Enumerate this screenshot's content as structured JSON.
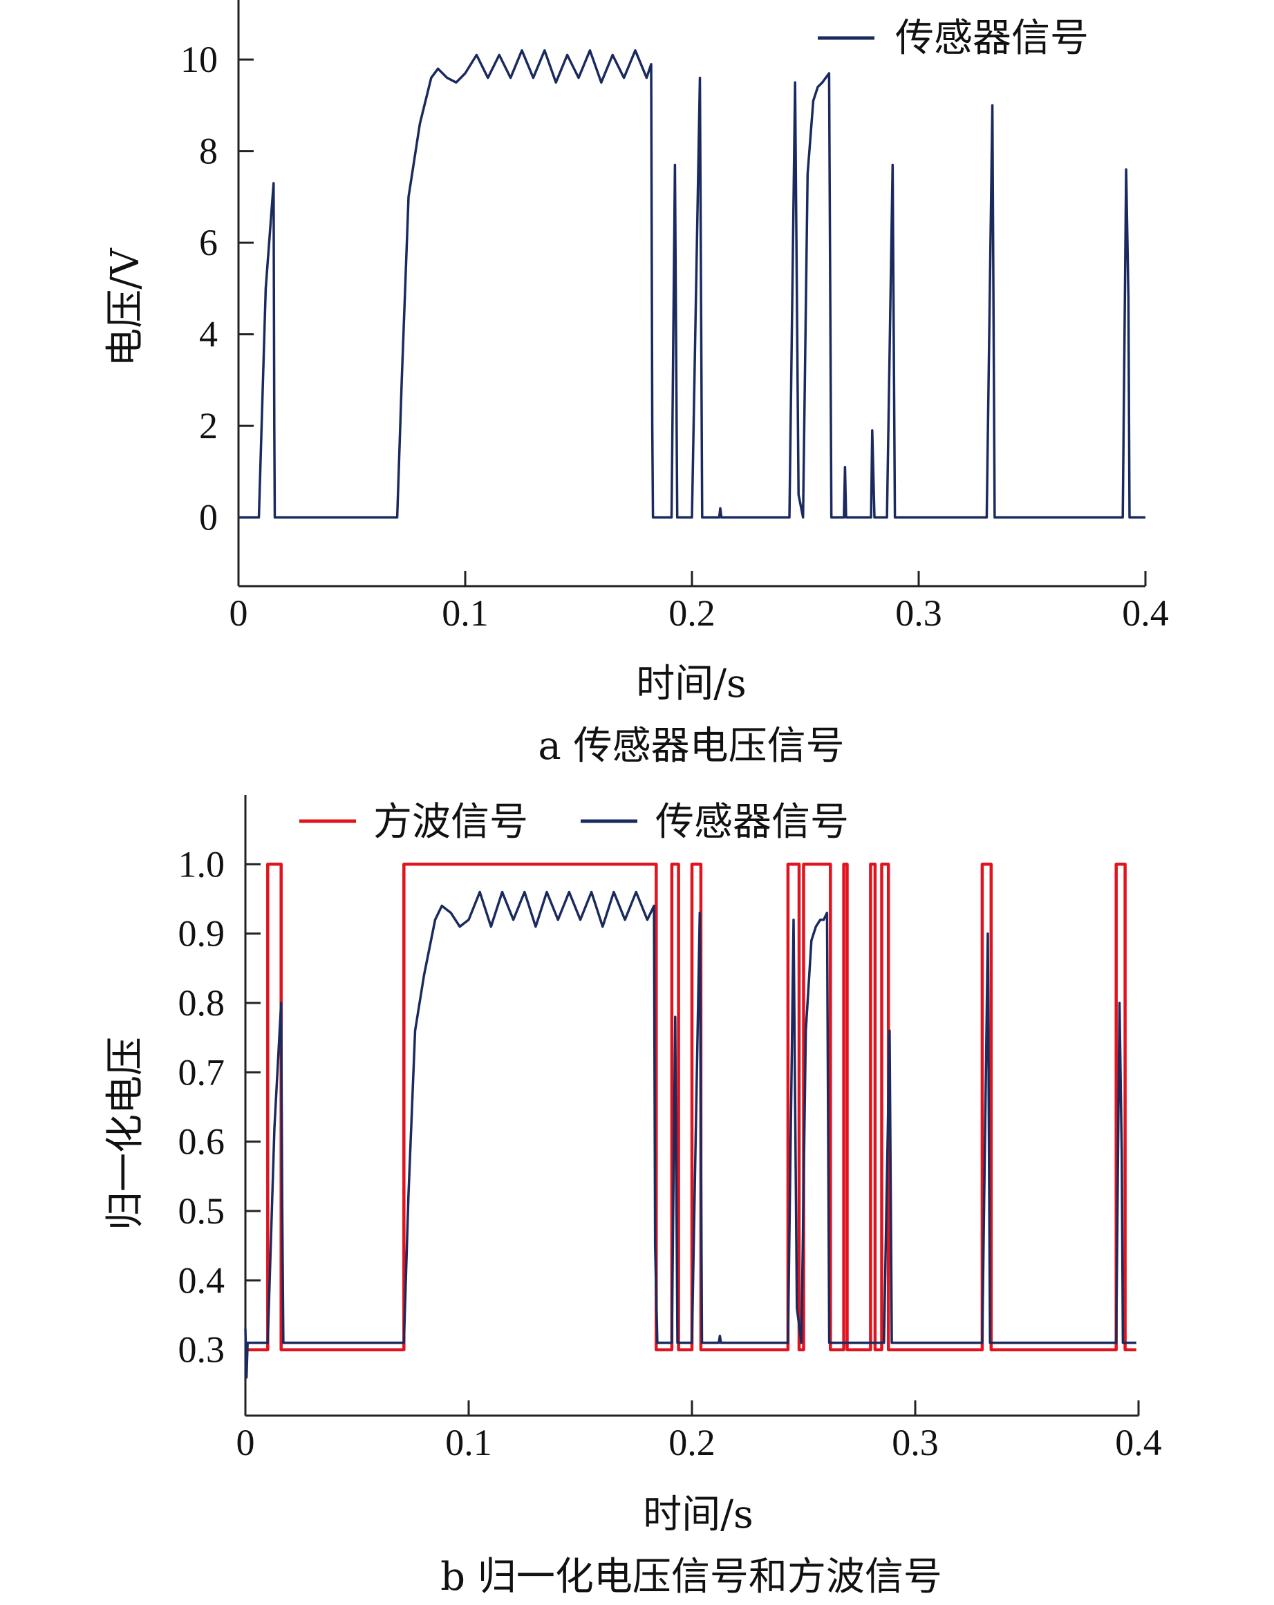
{
  "chart_data": [
    {
      "type": "line",
      "caption": "a  传感器电压信号",
      "xlabel": "时间/s",
      "ylabel": "电压/V",
      "xlim": [
        0,
        0.4
      ],
      "ylim": [
        -1.5,
        11.3
      ],
      "xticks": [
        0,
        0.1,
        0.2,
        0.3,
        0.4
      ],
      "xtick_labels": [
        "0",
        "0.1",
        "0.2",
        "0.3",
        "0.4"
      ],
      "yticks": [
        0,
        2,
        4,
        6,
        8,
        10
      ],
      "ytick_labels": [
        "0",
        "2",
        "4",
        "6",
        "8",
        "10"
      ],
      "grid": false,
      "legend_position": "top-right",
      "colors": {
        "sensor": "#1a2a5e"
      },
      "series": [
        {
          "name": "传感器信号",
          "x": [
            0.0,
            0.009,
            0.012,
            0.0155,
            0.0158,
            0.016,
            0.07,
            0.072,
            0.075,
            0.08,
            0.085,
            0.088,
            0.092,
            0.096,
            0.1,
            0.105,
            0.11,
            0.115,
            0.12,
            0.125,
            0.13,
            0.135,
            0.14,
            0.145,
            0.15,
            0.155,
            0.16,
            0.165,
            0.17,
            0.175,
            0.18,
            0.182,
            0.1825,
            0.1828,
            0.191,
            0.1925,
            0.1935,
            0.195,
            0.2,
            0.2035,
            0.2045,
            0.206,
            0.212,
            0.2125,
            0.213,
            0.243,
            0.2455,
            0.247,
            0.249,
            0.251,
            0.2535,
            0.2555,
            0.2575,
            0.259,
            0.2605,
            0.2615,
            0.263,
            0.267,
            0.2675,
            0.268,
            0.279,
            0.2795,
            0.2805,
            0.281,
            0.286,
            0.2885,
            0.2895,
            0.291,
            0.33,
            0.3325,
            0.3335,
            0.335,
            0.39,
            0.3915,
            0.3925,
            0.393,
            0.394,
            0.4
          ],
          "y": [
            0.0,
            0.0,
            5.0,
            7.3,
            2.0,
            0.0,
            0.0,
            3.0,
            7.0,
            8.6,
            9.6,
            9.8,
            9.6,
            9.5,
            9.7,
            10.1,
            9.6,
            10.1,
            9.6,
            10.2,
            9.6,
            10.2,
            9.5,
            10.1,
            9.6,
            10.2,
            9.5,
            10.1,
            9.6,
            10.2,
            9.6,
            9.9,
            2.0,
            0.0,
            0.0,
            7.7,
            0.0,
            0.0,
            0.0,
            9.6,
            0.0,
            0.0,
            0.0,
            0.2,
            0.0,
            0.0,
            9.5,
            0.5,
            0.0,
            7.5,
            9.1,
            9.4,
            9.5,
            9.6,
            9.7,
            0.0,
            0.0,
            0.0,
            1.1,
            0.0,
            0.0,
            1.9,
            0.0,
            0.0,
            0.0,
            7.7,
            0.0,
            0.0,
            0.0,
            9.0,
            0.0,
            0.0,
            0.0,
            7.6,
            4.8,
            0.0,
            0.0,
            0.0
          ]
        }
      ]
    },
    {
      "type": "line",
      "caption": "b  归一化电压信号和方波信号",
      "xlabel": "时间/s",
      "ylabel": "归一化电压",
      "xlim": [
        0,
        0.4
      ],
      "ylim": [
        0.205,
        1.1
      ],
      "xticks": [
        0,
        0.1,
        0.2,
        0.3,
        0.4
      ],
      "xtick_labels": [
        "0",
        "0.1",
        "0.2",
        "0.3",
        "0.4"
      ],
      "yticks": [
        0.3,
        0.4,
        0.5,
        0.6,
        0.7,
        0.8,
        0.9,
        1.0
      ],
      "ytick_labels": [
        "0.3",
        "0.4",
        "0.5",
        "0.6",
        "0.7",
        "0.8",
        "0.9",
        "1.0"
      ],
      "grid": false,
      "legend_position": "top-left",
      "colors": {
        "square": "#e0141e",
        "sensor": "#1a2a5e"
      },
      "series": [
        {
          "name": "方波信号",
          "x": [
            0.0,
            0.01,
            0.01,
            0.016,
            0.016,
            0.071,
            0.071,
            0.184,
            0.184,
            0.191,
            0.191,
            0.194,
            0.194,
            0.2,
            0.2,
            0.204,
            0.204,
            0.243,
            0.243,
            0.248,
            0.248,
            0.25,
            0.25,
            0.262,
            0.262,
            0.268,
            0.268,
            0.2695,
            0.2695,
            0.28,
            0.28,
            0.282,
            0.282,
            0.285,
            0.285,
            0.288,
            0.288,
            0.33,
            0.33,
            0.334,
            0.334,
            0.39,
            0.39,
            0.394,
            0.394,
            0.399
          ],
          "y": [
            0.3,
            0.3,
            1.0,
            1.0,
            0.3,
            0.3,
            1.0,
            1.0,
            0.3,
            0.3,
            1.0,
            1.0,
            0.3,
            0.3,
            1.0,
            1.0,
            0.3,
            0.3,
            1.0,
            1.0,
            0.3,
            0.3,
            1.0,
            1.0,
            0.3,
            0.3,
            1.0,
            1.0,
            0.3,
            0.3,
            1.0,
            1.0,
            0.3,
            0.3,
            1.0,
            1.0,
            0.3,
            0.3,
            1.0,
            1.0,
            0.3,
            0.3,
            1.0,
            1.0,
            0.3,
            0.3
          ]
        },
        {
          "name": "传感器信号",
          "x": [
            0.0,
            0.0005,
            0.001,
            0.0015,
            0.002,
            0.01,
            0.013,
            0.016,
            0.0165,
            0.017,
            0.071,
            0.073,
            0.076,
            0.08,
            0.085,
            0.088,
            0.092,
            0.096,
            0.1,
            0.105,
            0.11,
            0.115,
            0.12,
            0.125,
            0.13,
            0.135,
            0.14,
            0.145,
            0.15,
            0.155,
            0.16,
            0.165,
            0.17,
            0.175,
            0.18,
            0.183,
            0.1835,
            0.1845,
            0.191,
            0.1925,
            0.1935,
            0.195,
            0.2,
            0.2035,
            0.2045,
            0.206,
            0.212,
            0.2125,
            0.213,
            0.243,
            0.2455,
            0.247,
            0.249,
            0.251,
            0.2535,
            0.2555,
            0.2575,
            0.259,
            0.2605,
            0.2615,
            0.263,
            0.286,
            0.2885,
            0.2895,
            0.291,
            0.33,
            0.3325,
            0.3335,
            0.335,
            0.39,
            0.3915,
            0.3925,
            0.393,
            0.394,
            0.399
          ],
          "y": [
            0.33,
            0.26,
            0.31,
            0.31,
            0.31,
            0.31,
            0.62,
            0.8,
            0.5,
            0.31,
            0.31,
            0.52,
            0.76,
            0.84,
            0.92,
            0.94,
            0.93,
            0.91,
            0.92,
            0.96,
            0.91,
            0.96,
            0.92,
            0.96,
            0.91,
            0.96,
            0.92,
            0.96,
            0.92,
            0.96,
            0.91,
            0.96,
            0.92,
            0.96,
            0.92,
            0.94,
            0.45,
            0.31,
            0.31,
            0.78,
            0.31,
            0.31,
            0.31,
            0.93,
            0.31,
            0.31,
            0.31,
            0.32,
            0.31,
            0.31,
            0.92,
            0.36,
            0.31,
            0.76,
            0.89,
            0.91,
            0.92,
            0.92,
            0.93,
            0.31,
            0.31,
            0.31,
            0.76,
            0.31,
            0.31,
            0.31,
            0.9,
            0.31,
            0.31,
            0.31,
            0.8,
            0.58,
            0.31,
            0.31,
            0.31
          ]
        }
      ]
    }
  ]
}
